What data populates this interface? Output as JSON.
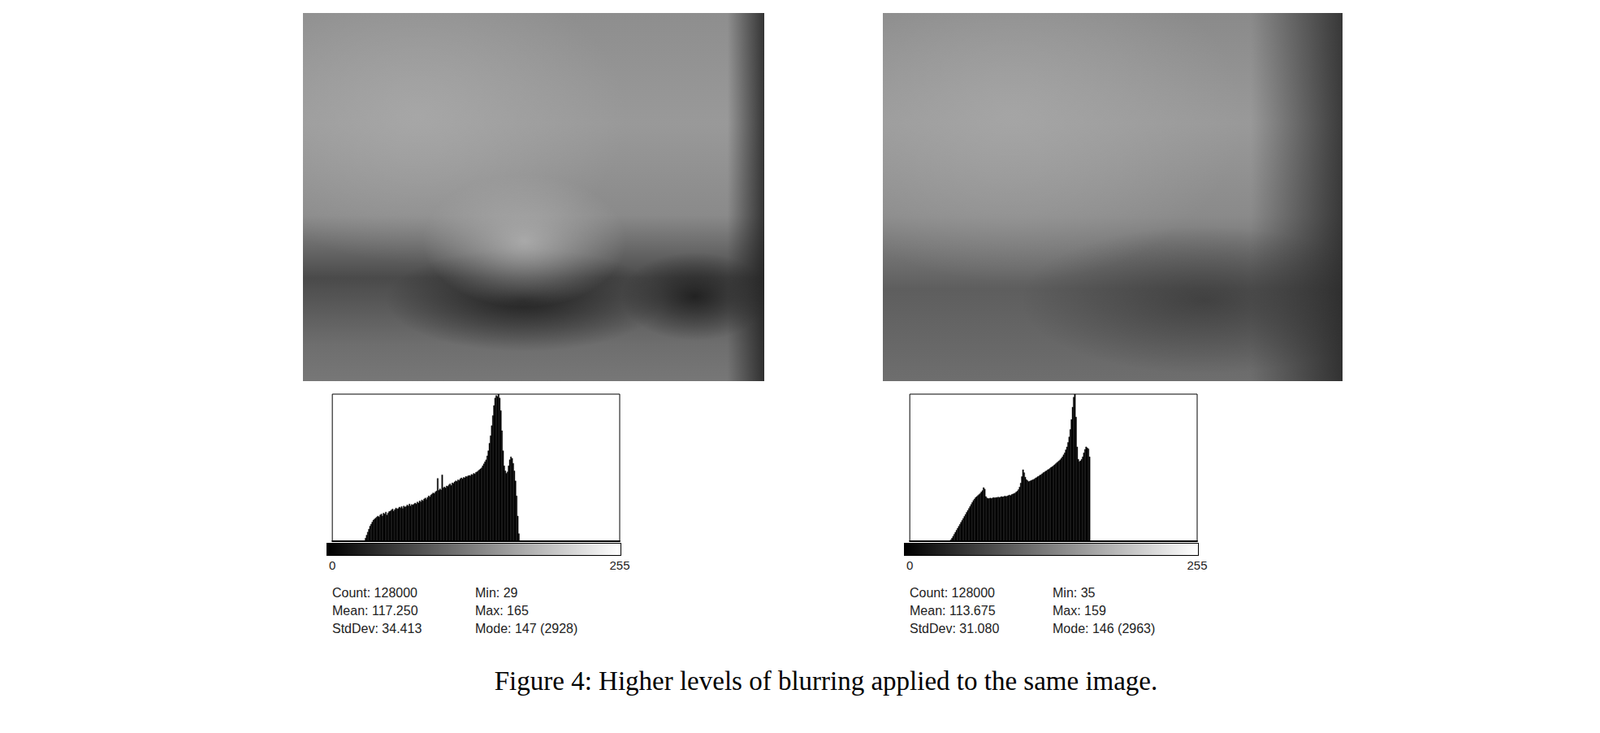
{
  "caption": "Figure 4: Higher levels of blurring applied to the same image.",
  "chart_data": [
    {
      "type": "histogram",
      "color": "#000000",
      "grid": false,
      "tick_labels": "x",
      "xlim": [
        0,
        255
      ],
      "xticks": [
        0,
        255
      ],
      "ylim": [
        0,
        2928
      ],
      "bins": [
        29,
        30,
        31,
        32,
        33,
        34,
        35,
        36,
        37,
        38,
        39,
        40,
        41,
        42,
        43,
        44,
        45,
        46,
        47,
        48,
        49,
        50,
        51,
        52,
        53,
        54,
        55,
        56,
        57,
        58,
        59,
        60,
        61,
        62,
        63,
        64,
        65,
        66,
        67,
        68,
        69,
        70,
        71,
        72,
        73,
        74,
        75,
        76,
        77,
        78,
        79,
        80,
        81,
        82,
        83,
        84,
        85,
        86,
        87,
        88,
        89,
        90,
        91,
        92,
        93,
        94,
        95,
        96,
        97,
        98,
        99,
        100,
        101,
        102,
        103,
        104,
        105,
        106,
        107,
        108,
        109,
        110,
        111,
        112,
        113,
        114,
        115,
        116,
        117,
        118,
        119,
        120,
        121,
        122,
        123,
        124,
        125,
        126,
        127,
        128,
        129,
        130,
        131,
        132,
        133,
        134,
        135,
        136,
        137,
        138,
        139,
        140,
        141,
        142,
        143,
        144,
        145,
        146,
        147,
        148,
        149,
        150,
        151,
        152,
        153,
        154,
        155,
        156,
        157,
        158,
        159,
        160,
        161,
        162,
        163,
        164,
        165,
        166
      ],
      "counts": [
        60,
        120,
        180,
        240,
        300,
        340,
        380,
        420,
        440,
        460,
        480,
        500,
        480,
        520,
        540,
        500,
        560,
        540,
        580,
        520,
        560,
        590,
        600,
        620,
        640,
        600,
        630,
        660,
        640,
        650,
        680,
        660,
        690,
        650,
        700,
        680,
        690,
        720,
        700,
        740,
        700,
        730,
        720,
        740,
        760,
        740,
        780,
        760,
        800,
        780,
        820,
        800,
        840,
        860,
        830,
        870,
        900,
        880,
        920,
        940,
        960,
        950,
        980,
        1000,
        1250,
        1010,
        1040,
        1020,
        1320,
        1060,
        1080,
        1060,
        1100,
        1090,
        1120,
        1140,
        1110,
        1160,
        1150,
        1180,
        1200,
        1190,
        1220,
        1210,
        1240,
        1260,
        1240,
        1270,
        1260,
        1290,
        1280,
        1300,
        1310,
        1300,
        1330,
        1320,
        1350,
        1340,
        1370,
        1380,
        1400,
        1420,
        1440,
        1460,
        1500,
        1540,
        1580,
        1620,
        1700,
        1800,
        1950,
        2100,
        2300,
        2500,
        2700,
        2850,
        2900,
        2880,
        2928,
        2850,
        2600,
        2200,
        1800,
        1500,
        1400,
        1350,
        1380,
        1500,
        1620,
        1680,
        1650,
        1550,
        1400,
        1200,
        900,
        500,
        150
      ],
      "annotations": [
        [
          "Count: 128000",
          "Min: 29"
        ],
        [
          "Mean: 117.250",
          "Max: 165"
        ],
        [
          "StdDev: 34.413",
          "Mode: 147 (2928)"
        ]
      ]
    },
    {
      "type": "histogram",
      "color": "#000000",
      "grid": false,
      "tick_labels": "x",
      "xlim": [
        0,
        255
      ],
      "xticks": [
        0,
        255
      ],
      "ylim": [
        0,
        2963
      ],
      "bins": [
        35,
        36,
        37,
        38,
        39,
        40,
        41,
        42,
        43,
        44,
        45,
        46,
        47,
        48,
        49,
        50,
        51,
        52,
        53,
        54,
        55,
        56,
        57,
        58,
        59,
        60,
        61,
        62,
        63,
        64,
        65,
        66,
        67,
        68,
        69,
        70,
        71,
        72,
        73,
        74,
        75,
        76,
        77,
        78,
        79,
        80,
        81,
        82,
        83,
        84,
        85,
        86,
        87,
        88,
        89,
        90,
        91,
        92,
        93,
        94,
        95,
        96,
        97,
        98,
        99,
        100,
        101,
        102,
        103,
        104,
        105,
        106,
        107,
        108,
        109,
        110,
        111,
        112,
        113,
        114,
        115,
        116,
        117,
        118,
        119,
        120,
        121,
        122,
        123,
        124,
        125,
        126,
        127,
        128,
        129,
        130,
        131,
        132,
        133,
        134,
        135,
        136,
        137,
        138,
        139,
        140,
        141,
        142,
        143,
        144,
        145,
        146,
        147,
        148,
        149,
        150,
        151,
        152,
        153,
        154,
        155,
        156,
        157,
        158,
        159,
        160
      ],
      "counts": [
        10,
        30,
        60,
        100,
        140,
        180,
        220,
        260,
        300,
        340,
        380,
        420,
        460,
        500,
        540,
        580,
        620,
        660,
        700,
        740,
        780,
        820,
        850,
        880,
        900,
        920,
        940,
        960,
        990,
        1020,
        1080,
        1050,
        900,
        870,
        860,
        860,
        870,
        860,
        870,
        880,
        870,
        880,
        880,
        890,
        880,
        890,
        900,
        890,
        900,
        910,
        900,
        910,
        920,
        930,
        920,
        940,
        950,
        960,
        970,
        990,
        1010,
        1040,
        1090,
        1170,
        1300,
        1440,
        1380,
        1290,
        1240,
        1220,
        1200,
        1210,
        1220,
        1230,
        1240,
        1250,
        1270,
        1280,
        1300,
        1310,
        1330,
        1340,
        1360,
        1380,
        1390,
        1410,
        1420,
        1440,
        1450,
        1470,
        1490,
        1500,
        1520,
        1540,
        1560,
        1580,
        1600,
        1620,
        1640,
        1670,
        1700,
        1740,
        1780,
        1840,
        1900,
        1990,
        2100,
        2250,
        2450,
        2700,
        2900,
        2963,
        2500,
        1900,
        1650,
        1600,
        1620,
        1650,
        1700,
        1780,
        1850,
        1900,
        1880,
        1860,
        1700
      ],
      "annotations": [
        [
          "Count: 128000",
          "Min: 35"
        ],
        [
          "Mean: 113.675",
          "Max: 159"
        ],
        [
          "StdDev: 31.080",
          "Mode: 146 (2963)"
        ]
      ]
    }
  ]
}
